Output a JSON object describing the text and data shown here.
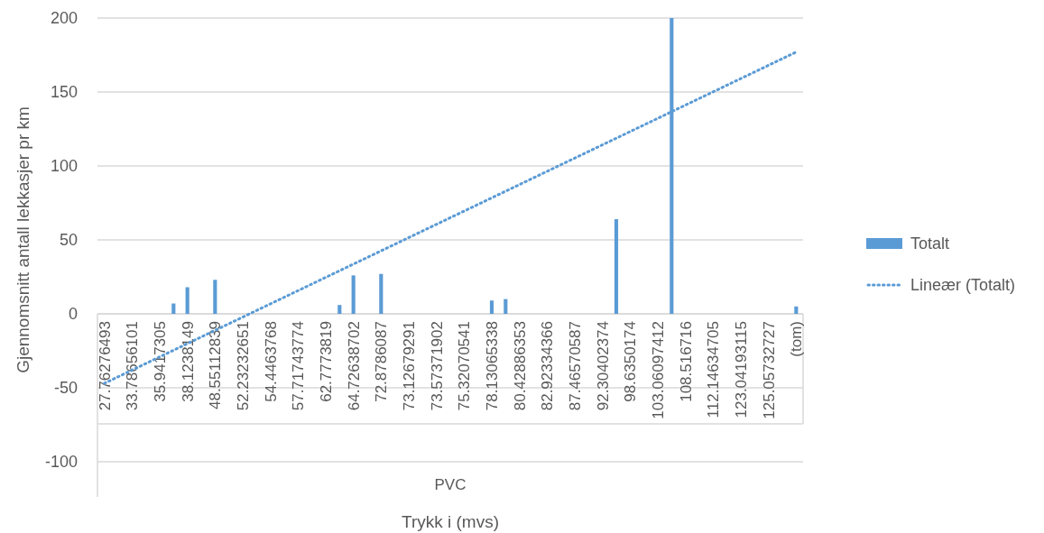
{
  "chart_data": {
    "type": "bar",
    "xlabel": "Trykk i (mvs)",
    "ylabel": "Gjennomsnitt antall lekkasjer pr km",
    "categories": [
      "27.76276493",
      null,
      "33.78656101",
      null,
      "35.9417305",
      null,
      "38.1238149",
      null,
      "48.55112839",
      null,
      "52.23232651",
      null,
      "54.4463768",
      null,
      "57.71743774",
      null,
      "62.7773819",
      null,
      "64.72638702",
      null,
      "72.8786087",
      null,
      "73.12679291",
      null,
      "73.57371902",
      null,
      "75.32070541",
      null,
      "78.13065338",
      null,
      "80.42886353",
      null,
      "82.92334366",
      null,
      "87.46570587",
      null,
      "92.30402374",
      null,
      "98.6350174",
      null,
      "103.06097412",
      null,
      "108.516716",
      null,
      "112.14634705",
      null,
      "123.04193115",
      null,
      "125.05732727",
      null,
      "(tom)"
    ],
    "series": [
      {
        "name": "Totalt",
        "color": "#5b9bd5",
        "values": [
          null,
          null,
          null,
          null,
          null,
          7,
          18,
          null,
          23,
          null,
          null,
          null,
          null,
          null,
          null,
          null,
          null,
          6,
          26,
          null,
          27,
          null,
          null,
          null,
          null,
          null,
          null,
          null,
          9,
          10,
          null,
          null,
          null,
          null,
          null,
          null,
          null,
          64,
          null,
          null,
          null,
          200,
          null,
          null,
          null,
          null,
          null,
          null,
          null,
          null,
          5
        ]
      },
      {
        "name": "Lineær (Totalt)",
        "type": "line",
        "line_style": "dotted",
        "color": "#5b9bd5",
        "x": [
          "27.76276493",
          "(tom)"
        ],
        "values": [
          -47,
          177
        ]
      }
    ],
    "ylim": [
      -100,
      200
    ],
    "yticks": [
      -100,
      -50,
      0,
      50,
      100,
      150,
      200
    ],
    "grid": "y",
    "legend": "right",
    "annotations": [
      "PVC"
    ]
  }
}
